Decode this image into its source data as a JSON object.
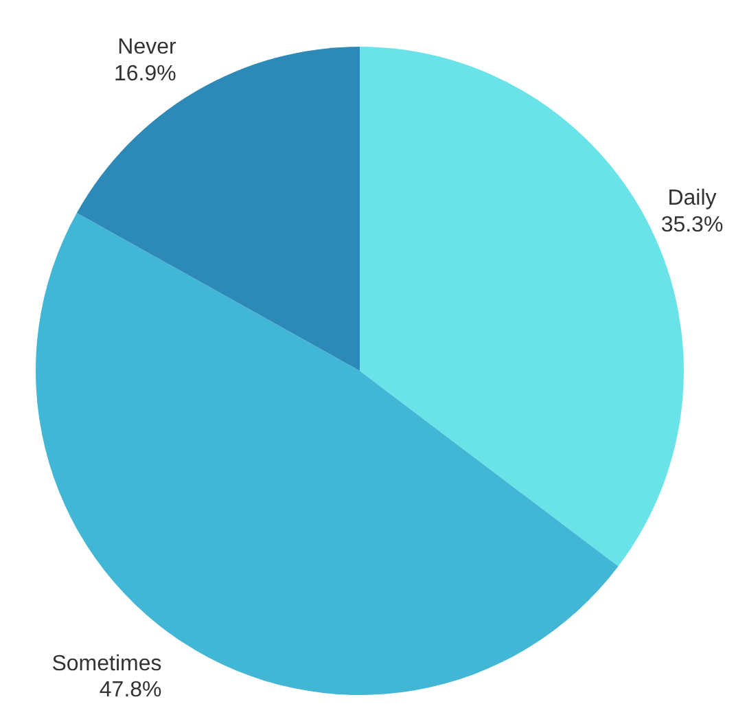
{
  "chart_data": {
    "type": "pie",
    "categories": [
      "Daily",
      "Sometimes",
      "Never"
    ],
    "values": [
      35.3,
      47.8,
      16.9
    ],
    "value_labels": [
      "35.3%",
      "47.8%",
      "16.9%"
    ],
    "colors": [
      "#6ae3e8",
      "#42b7d5",
      "#2d8ab8"
    ]
  }
}
